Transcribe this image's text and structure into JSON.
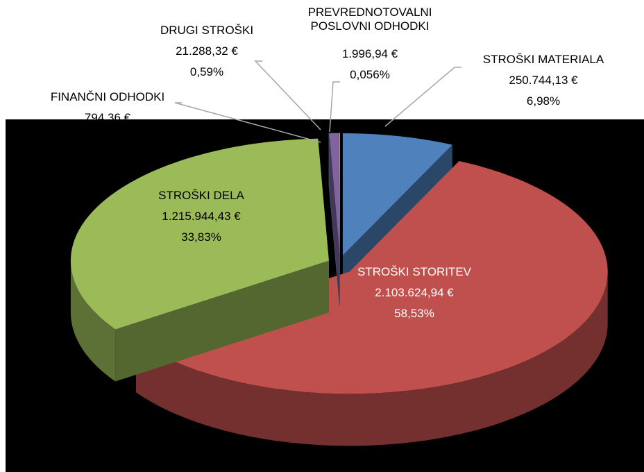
{
  "chart_data": {
    "type": "pie3d",
    "categories": [
      "STROŠKI MATERIALA",
      "STROŠKI STORITEV",
      "STROŠKI DELA",
      "FINANČNI ODHODKI",
      "DRUGI STROŠKI",
      "PREVREDNOTOVALNI POSLOVNI ODHODKI"
    ],
    "values": [
      250744.13,
      2103624.94,
      1215944.43,
      794.36,
      21288.32,
      1996.94
    ],
    "value_labels": [
      "250.744,13 €",
      "2.103.624,94 €",
      "1.215.944,43 €",
      "794,36 €",
      "21.288,32 €",
      "1.996,94 €"
    ],
    "percentage_labels": [
      "6,98%",
      "58,53%",
      "33,83%",
      null,
      "0,59%",
      "0,056%"
    ],
    "colors": [
      "#4f81bd",
      "#c0504d",
      "#9bbb59",
      "#4bacc6",
      "#8064a2",
      "#f79646"
    ]
  }
}
